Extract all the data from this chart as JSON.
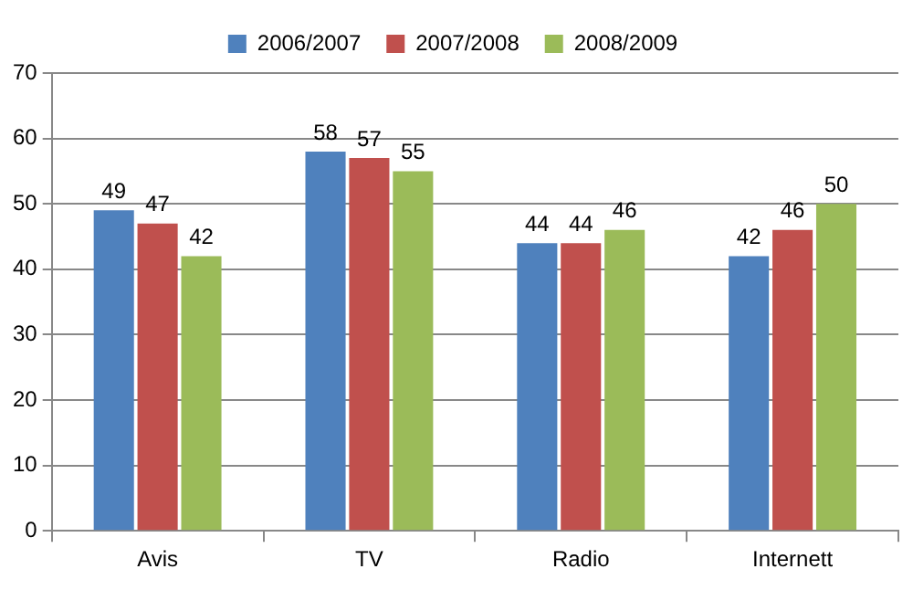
{
  "chart_data": {
    "type": "bar",
    "categories": [
      "Avis",
      "TV",
      "Radio",
      "Internett"
    ],
    "series": [
      {
        "name": "2006/2007",
        "color": "#4f81bd",
        "values": [
          49,
          58,
          44,
          42
        ]
      },
      {
        "name": "2007/2008",
        "color": "#c0504d",
        "values": [
          47,
          57,
          44,
          46
        ]
      },
      {
        "name": "2008/2009",
        "color": "#9bbb59",
        "values": [
          42,
          55,
          46,
          50
        ]
      }
    ],
    "ylim": [
      0,
      70
    ],
    "yticks": [
      0,
      10,
      20,
      30,
      40,
      50,
      60,
      70
    ],
    "grid": "y",
    "legend": "top",
    "data_labels": true
  }
}
